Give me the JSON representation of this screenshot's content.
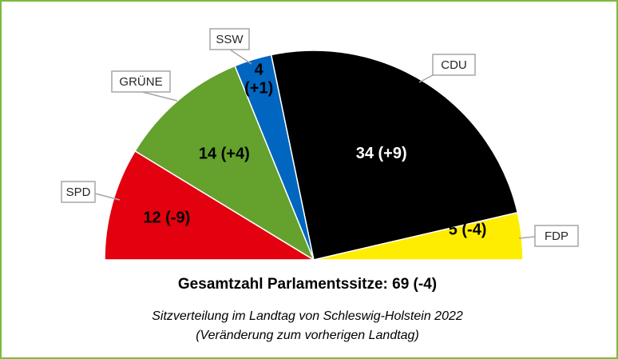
{
  "chart_data": {
    "type": "pie",
    "layout": "semicircle",
    "series": [
      {
        "name": "SPD",
        "seats": 12,
        "change": -9,
        "label": "12 (-9)",
        "color": "#e3000f",
        "label_color": "#000000"
      },
      {
        "name": "GRÜNE",
        "seats": 14,
        "change": 4,
        "label": "14 (+4)",
        "color": "#64a12d",
        "label_color": "#000000"
      },
      {
        "name": "SSW",
        "seats": 4,
        "change": 1,
        "label_lines": [
          "4",
          "(+1)"
        ],
        "color": "#0066c0",
        "label_color": "#000000"
      },
      {
        "name": "CDU",
        "seats": 34,
        "change": 9,
        "label": "34 (+9)",
        "color": "#000000",
        "label_color": "#ffffff"
      },
      {
        "name": "FDP",
        "seats": 5,
        "change": -4,
        "label": "5 (-4)",
        "color": "#ffed00",
        "label_color": "#000000"
      }
    ],
    "total_label": "Gesamtzahl Parlamentssitze: 69 (-4)",
    "caption_lines": [
      "Sitzverteilung im Landtag von Schleswig-Holstein 2022",
      "(Veränderung zum vorherigen Landtag)"
    ]
  },
  "colors": {
    "border": "#7dbb3c"
  }
}
